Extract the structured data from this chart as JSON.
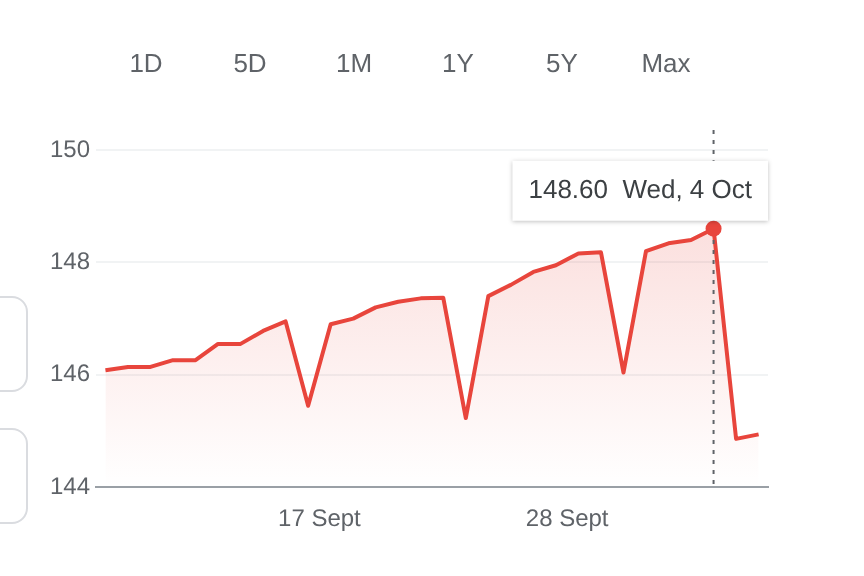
{
  "chart_data": {
    "type": "area",
    "color": "#e8453c",
    "x": [
      "--09-07T12:00",
      "--09-08T12:00",
      "--09-09T12:00",
      "--09-10T12:00",
      "--09-11T12:00",
      "--09-12T12:00",
      "--09-13T12:00",
      "--09-14T12:00",
      "--09-15T12:00",
      "--09-16T12:00",
      "--09-17T12:00",
      "--09-18T12:00",
      "--09-19T12:00",
      "--09-20T12:00",
      "--09-21T12:00",
      "--09-22T12:00",
      "--09-23T12:00",
      "--09-24T12:00",
      "--09-25T12:00",
      "--09-26T12:00",
      "--09-27T12:00",
      "--09-28T12:00",
      "--09-29T12:00",
      "--09-30T12:00",
      "--10-01T12:00",
      "--10-02T12:00",
      "--10-03T12:00",
      "--10-04T12:00",
      "--10-05T12:00",
      "--10-06T12:00"
    ],
    "values": [
      146.08,
      146.14,
      146.14,
      146.26,
      146.26,
      146.55,
      146.55,
      146.78,
      146.95,
      145.45,
      146.9,
      147.0,
      147.2,
      147.3,
      147.36,
      147.37,
      145.23,
      147.4,
      147.6,
      147.83,
      147.95,
      148.16,
      148.18,
      146.04,
      148.2,
      148.34,
      148.4,
      148.6,
      144.86,
      144.94
    ],
    "xlim": [
      "--09-07T02:00",
      "--10-06T22:00"
    ],
    "xticks": [
      {
        "value": "--09-17",
        "label": "17 Sept"
      },
      {
        "value": "--09-28",
        "label": "28 Sept"
      }
    ],
    "ylim": [
      144,
      150
    ],
    "yticks": [
      144,
      146,
      148,
      150
    ],
    "grid": "y",
    "legend": false,
    "ref_lines": [
      {
        "axis": "x",
        "value": "--10-04T12:00",
        "line_style": "dotted",
        "color": "#5f6368"
      }
    ],
    "annotations": [
      "1D",
      "5D",
      "1M",
      "1Y",
      "5Y",
      "Max",
      {
        "text": "148.60  Wed, 4 Oct",
        "x": "--10-04T12:00",
        "y": 148.6
      }
    ]
  }
}
